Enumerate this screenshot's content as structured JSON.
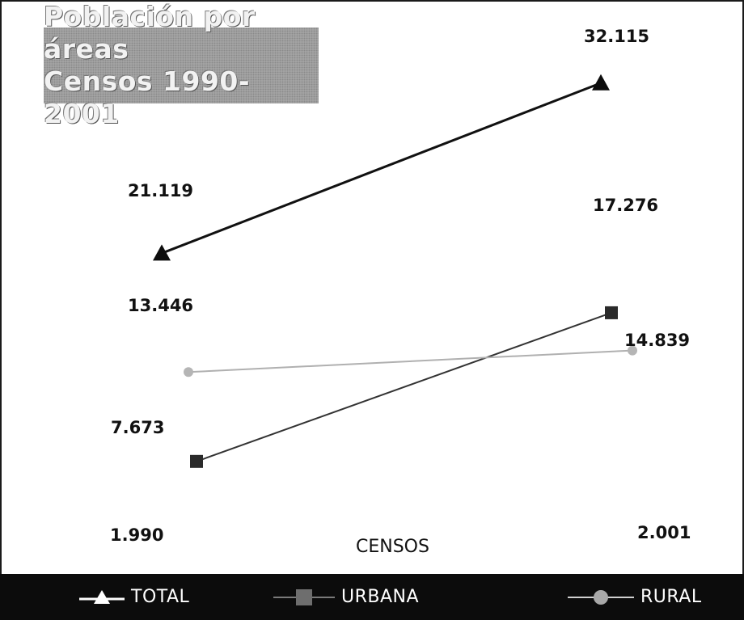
{
  "chart_data": {
    "type": "line",
    "title_lines": [
      "Población por áreas",
      "Censos 1990-2001"
    ],
    "xlabel": "CENSOS",
    "ylabel": "",
    "categories": [
      "1.990",
      "2.001"
    ],
    "grid": false,
    "legend_position": "bottom",
    "series": [
      {
        "name": "TOTAL",
        "values": [
          21119,
          32115
        ],
        "labels": [
          "21.119",
          "32.115"
        ],
        "color": "#111111",
        "marker": "triangle"
      },
      {
        "name": "URBANA",
        "values": [
          7673,
          17276
        ],
        "labels": [
          "7.673",
          "17.276"
        ],
        "color": "#333333",
        "marker": "square"
      },
      {
        "name": "RURAL",
        "values": [
          13446,
          14839
        ],
        "labels": [
          "13.446",
          "14.839"
        ],
        "color": "#b0b0b0",
        "marker": "circle"
      }
    ]
  }
}
